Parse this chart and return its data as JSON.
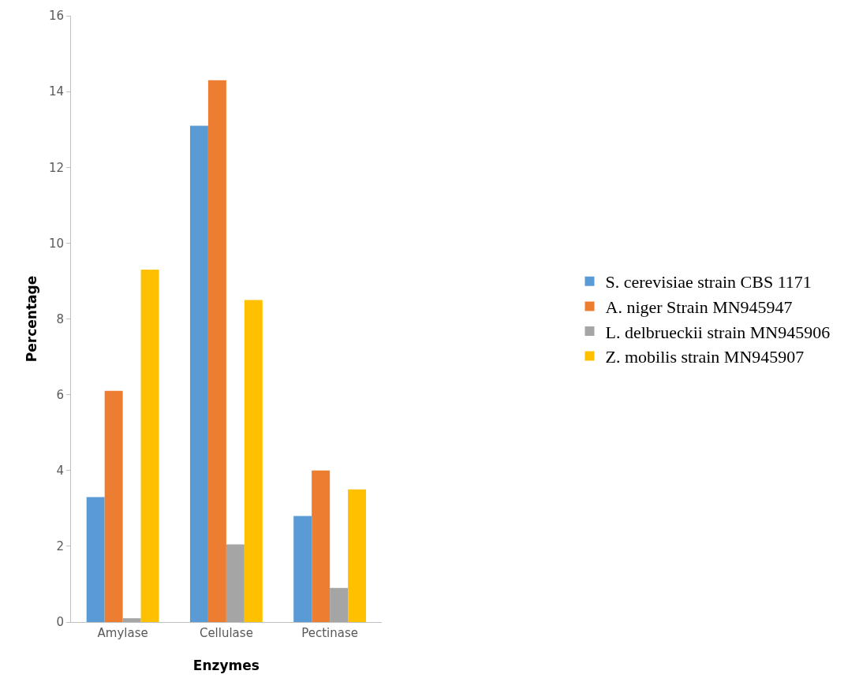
{
  "chart_data": {
    "type": "bar",
    "xlabel": "Enzymes",
    "ylabel": "Percentage",
    "categories": [
      "Amylase",
      "Cellulase",
      "Pectinase"
    ],
    "series": [
      {
        "name": "S. cerevisiae strain CBS 1171",
        "color": "#5b9bd5",
        "values": [
          3.3,
          13.1,
          2.8
        ]
      },
      {
        "name": "A. niger Strain MN945947",
        "color": "#ed7d31",
        "values": [
          6.1,
          14.3,
          4.0
        ]
      },
      {
        "name": "L. delbrueckii strain MN945906",
        "color": "#a5a5a5",
        "values": [
          0.1,
          2.05,
          0.9
        ]
      },
      {
        "name": "Z. mobilis strain MN945907",
        "color": "#ffc000",
        "values": [
          9.3,
          8.5,
          3.5
        ]
      }
    ],
    "ylim": [
      0,
      16
    ],
    "yticks": [
      0,
      2,
      4,
      6,
      8,
      10,
      12,
      14,
      16
    ],
    "grid": false,
    "legend": "right"
  }
}
